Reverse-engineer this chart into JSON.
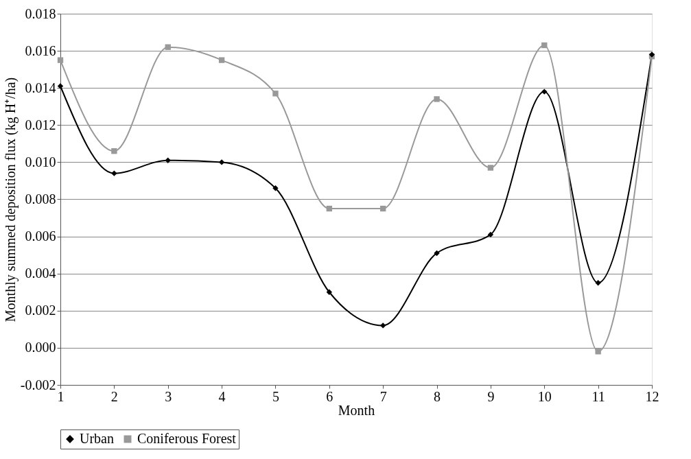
{
  "chart_data": {
    "type": "line",
    "xlabel": "Month",
    "ylabel": "Monthly summed deposition flux (kg H⁺/ha)",
    "x": [
      1,
      2,
      3,
      4,
      5,
      6,
      7,
      8,
      9,
      10,
      11,
      12
    ],
    "series": [
      {
        "name": "Urban",
        "color": "#000000",
        "marker": "diamond",
        "values": [
          0.0141,
          0.0094,
          0.0101,
          0.01,
          0.0086,
          0.003,
          0.0012,
          0.0051,
          0.0061,
          0.0138,
          0.0035,
          0.0158
        ]
      },
      {
        "name": "Coniferous Forest",
        "color": "#999999",
        "marker": "square",
        "values": [
          0.0155,
          0.0106,
          0.0162,
          0.0155,
          0.0137,
          0.0075,
          0.0075,
          0.0134,
          0.0097,
          0.0163,
          -0.0002,
          0.0157
        ]
      }
    ],
    "xlim": [
      1,
      12
    ],
    "xticks": [
      1,
      2,
      3,
      4,
      5,
      6,
      7,
      8,
      9,
      10,
      11,
      12
    ],
    "ylim": [
      -0.002,
      0.018
    ],
    "yticks": [
      {
        "value": -0.002,
        "label": "-0.002"
      },
      {
        "value": 0,
        "label": "0.000"
      },
      {
        "value": 0.002,
        "label": "0.002"
      },
      {
        "value": 0.004,
        "label": "0.004"
      },
      {
        "value": 0.006,
        "label": "0.006"
      },
      {
        "value": 0.008,
        "label": "0.008"
      },
      {
        "value": 0.01,
        "label": "0.010"
      },
      {
        "value": 0.012,
        "label": "0.012"
      },
      {
        "value": 0.014,
        "label": "0.014"
      },
      {
        "value": 0.016,
        "label": "0.016"
      },
      {
        "value": 0.018,
        "label": "0.018"
      }
    ],
    "grid": "y",
    "legend": "bottom",
    "line_style": "solid"
  }
}
